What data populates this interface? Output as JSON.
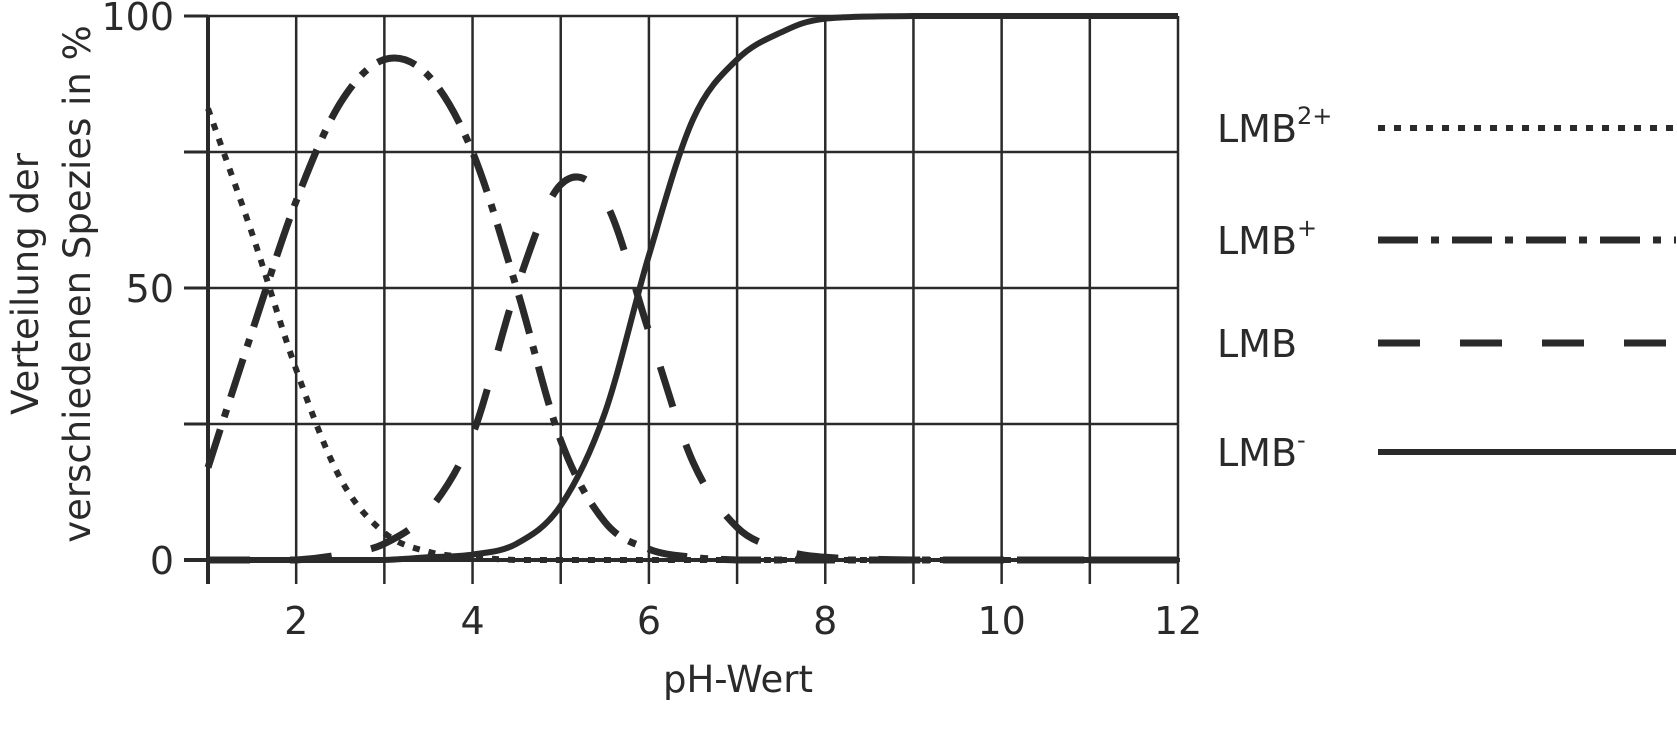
{
  "chart_data": {
    "type": "line",
    "title": "",
    "xlabel": "pH-Wert",
    "ylabel": "Verteilung der verschiedenen Spezies in %",
    "ylabel_lines": [
      "Verteilung der",
      "verschiedenen Spezies in %"
    ],
    "xlim": [
      1,
      12
    ],
    "ylim": [
      0,
      100
    ],
    "x_ticks": [
      2,
      4,
      6,
      8,
      10,
      12
    ],
    "x_minor_ticks": [
      1,
      2,
      3,
      4,
      5,
      6,
      7,
      8,
      9,
      10,
      11,
      12
    ],
    "y_ticks": [
      0,
      50,
      100
    ],
    "y_minor_ticks": [
      0,
      25,
      50,
      75,
      100
    ],
    "grid": true,
    "legend_position": "right",
    "x": [
      1.0,
      1.5,
      2.0,
      2.5,
      3.0,
      3.5,
      4.0,
      4.5,
      5.0,
      5.5,
      6.0,
      6.5,
      7.0,
      7.5,
      8.0,
      9.0,
      10.0,
      11.0,
      12.0
    ],
    "series": [
      {
        "name": "LMB2+",
        "label_base": "LMB",
        "label_sup": "2+",
        "style": "dotted",
        "values": [
          83,
          60,
          35,
          15,
          5,
          1.5,
          0.5,
          0,
          0,
          0,
          0,
          0,
          0,
          0,
          0,
          0,
          0,
          0,
          0
        ]
      },
      {
        "name": "LMB+",
        "label_base": "LMB",
        "label_sup": "+",
        "style": "dash-dot",
        "values": [
          17,
          42,
          66,
          84,
          92,
          89,
          75,
          50,
          22,
          7,
          2,
          0.5,
          0,
          0,
          0,
          0,
          0,
          0,
          0
        ]
      },
      {
        "name": "LMB",
        "label_base": "LMB",
        "label_sup": "",
        "style": "dashed",
        "values": [
          0,
          0,
          0,
          1,
          3,
          9,
          23,
          50,
          69,
          66,
          42,
          18,
          6,
          2,
          0.5,
          0,
          0,
          0,
          0
        ]
      },
      {
        "name": "LMB-",
        "label_base": "LMB",
        "label_sup": "-",
        "style": "solid",
        "values": [
          0,
          0,
          0,
          0,
          0,
          0.5,
          1,
          3,
          10,
          27,
          56,
          81,
          92,
          97,
          99.5,
          100,
          100,
          100,
          100
        ]
      }
    ]
  },
  "colors": {
    "ink": "#2a2a2a",
    "grid": "#2a2a2a",
    "background": "#ffffff"
  }
}
